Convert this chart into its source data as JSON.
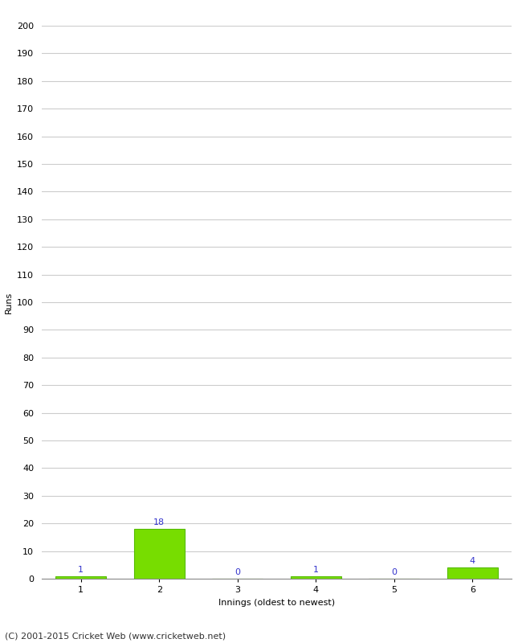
{
  "xlabel": "Innings (oldest to newest)",
  "ylabel": "Runs",
  "categories": [
    1,
    2,
    3,
    4,
    5,
    6
  ],
  "values": [
    1,
    18,
    0,
    1,
    0,
    4
  ],
  "bar_color": "#77dd00",
  "bar_edge_color": "#55bb00",
  "label_color": "#3333cc",
  "ylim": [
    0,
    200
  ],
  "yticks": [
    0,
    10,
    20,
    30,
    40,
    50,
    60,
    70,
    80,
    90,
    100,
    110,
    120,
    130,
    140,
    150,
    160,
    170,
    180,
    190,
    200
  ],
  "background_color": "#ffffff",
  "grid_color": "#cccccc",
  "footer": "(C) 2001-2015 Cricket Web (www.cricketweb.net)",
  "bar_width": 0.65,
  "label_fontsize": 8,
  "axis_fontsize": 8,
  "footer_fontsize": 8,
  "tick_label_fontsize": 8
}
